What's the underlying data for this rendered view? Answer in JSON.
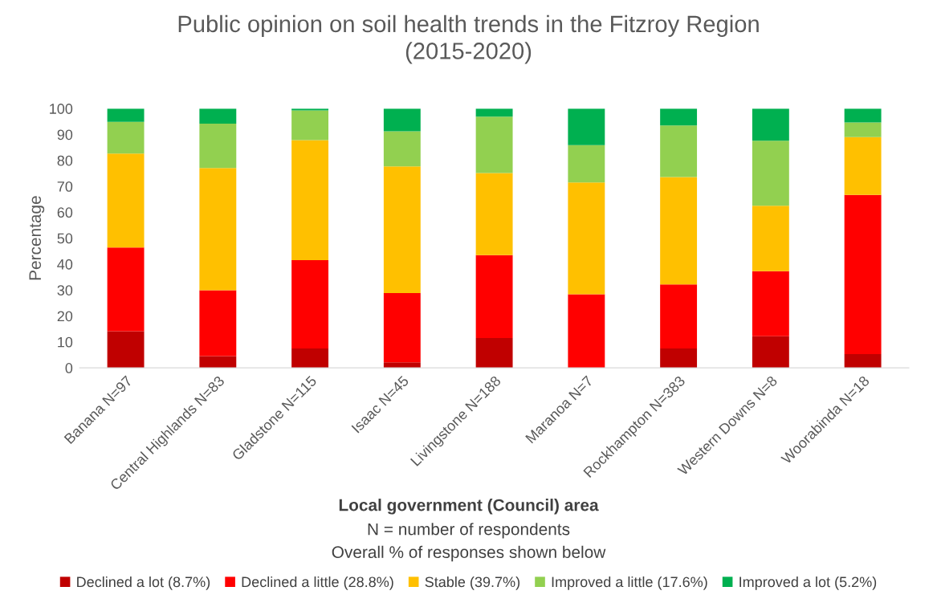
{
  "chart_data": {
    "type": "bar",
    "stacked": true,
    "title": "Public opinion on soil health trends in the Fitzroy Region\n(2015-2020)",
    "xlabel": "Local government (Council) area",
    "ylabel": "Percentage",
    "annotations": [
      "N = number of respondents",
      "Overall % of responses shown below"
    ],
    "categories": [
      "Banana N=97",
      "Central Highlands N=83",
      "Gladstone N=115",
      "Isaac N=45",
      "Livingstone N=188",
      "Maranoa N=7",
      "Rockhampton N=383",
      "Western Downs N=8",
      "Woorabinda N=18"
    ],
    "series": [
      {
        "name": "Declined a lot (8.7%)",
        "color": "#c00000",
        "values": [
          14.1,
          4.5,
          7.5,
          2.1,
          11.5,
          0,
          7.5,
          12.2,
          5.3
        ]
      },
      {
        "name": "Declined a little (28.8%)",
        "color": "#ff0000",
        "values": [
          32.3,
          25.4,
          34.0,
          26.7,
          32.0,
          28.4,
          24.7,
          25.1,
          61.4
        ]
      },
      {
        "name": "Stable (39.7%)",
        "color": "#ffc000",
        "values": [
          36.2,
          47.2,
          46.3,
          48.9,
          31.6,
          43.1,
          41.4,
          25.2,
          22.3
        ]
      },
      {
        "name": "Improved a little (17.6%)",
        "color": "#92d050",
        "values": [
          12.3,
          17.1,
          11.5,
          13.5,
          21.8,
          14.4,
          19.9,
          25.1,
          5.6
        ]
      },
      {
        "name": "Improved a lot (5.2%)",
        "color": "#00b050",
        "values": [
          5.1,
          5.8,
          0.7,
          8.8,
          3.1,
          14.1,
          6.5,
          12.4,
          5.4
        ]
      }
    ],
    "ylim": [
      0,
      100
    ],
    "yticks": [
      0,
      10,
      20,
      30,
      40,
      50,
      60,
      70,
      80,
      90,
      100
    ],
    "grid": false,
    "legend": "bottom"
  }
}
